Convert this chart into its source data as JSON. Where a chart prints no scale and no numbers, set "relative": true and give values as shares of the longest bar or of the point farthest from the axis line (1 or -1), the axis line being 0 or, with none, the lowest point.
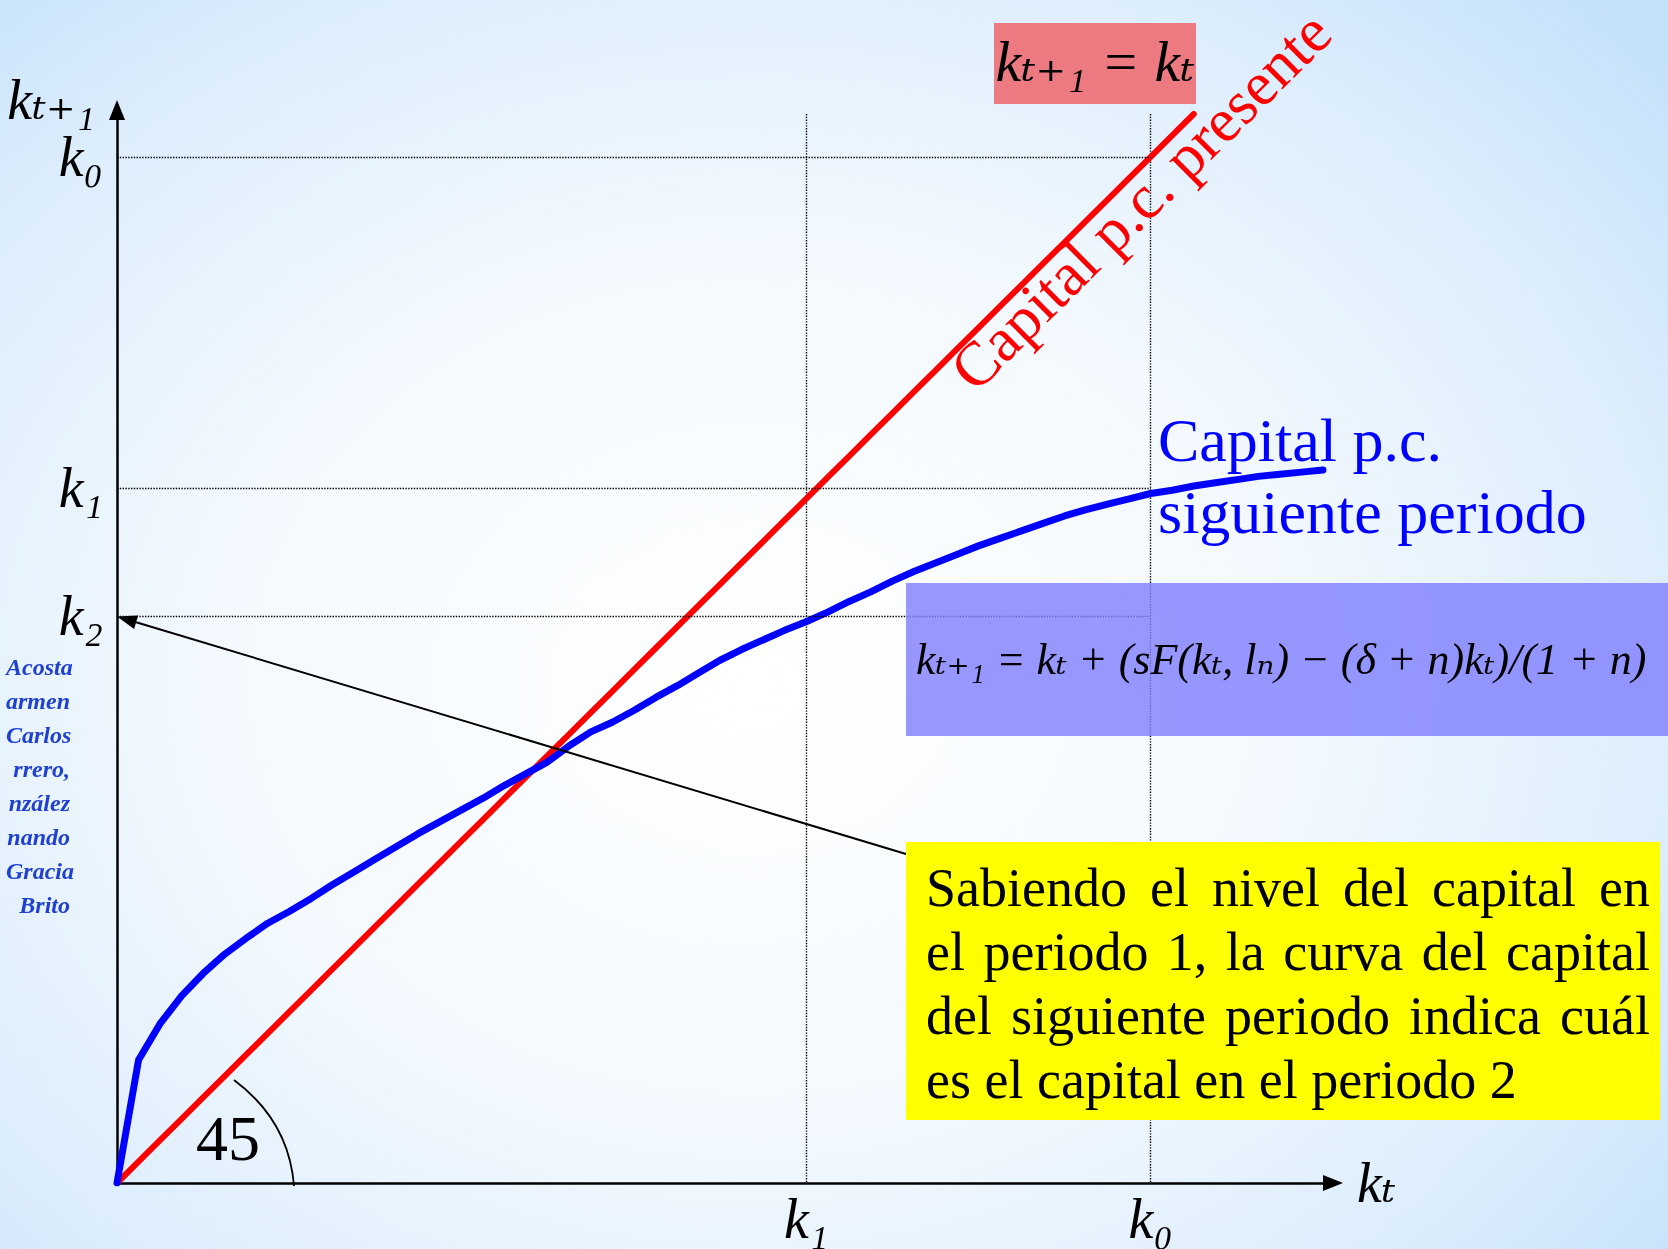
{
  "chart_data": {
    "type": "line",
    "relative": true,
    "xlabel": "kₜ",
    "ylabel": "kₜ₊₁",
    "marker": "none",
    "grid": "x",
    "categories": [
      null,
      null,
      null,
      null,
      null,
      null,
      null,
      null,
      null,
      null,
      null,
      null,
      null,
      null,
      null,
      null,
      null,
      null,
      null,
      null,
      null,
      null,
      null,
      null,
      null,
      null,
      null,
      null,
      null,
      null,
      null,
      null,
      "k₁",
      null,
      null,
      null,
      null,
      null,
      null,
      null,
      null,
      null,
      null,
      null,
      null,
      null,
      null,
      null,
      "k₀",
      null,
      null,
      null,
      null,
      null,
      null,
      null,
      null
    ],
    "series": [
      {
        "name": "Capital p.c. presente",
        "color": "#ff0000",
        "values": [
          0,
          0.02,
          0.04,
          0.06,
          0.08,
          0.1,
          0.12,
          0.14,
          0.16,
          0.18,
          0.2,
          0.22,
          0.24,
          0.26,
          0.28,
          0.3,
          0.32,
          0.34,
          0.36,
          0.38,
          0.4,
          0.42,
          0.44,
          0.46,
          0.48,
          0.5,
          0.52,
          0.54,
          0.56,
          0.58,
          0.6,
          0.62,
          0.64,
          0.66,
          0.68,
          0.7,
          0.72,
          0.74,
          0.76,
          0.78,
          0.8,
          0.82,
          0.84,
          0.86,
          0.88,
          0.9,
          0.92,
          0.94,
          0.96,
          0.98,
          1,
          null,
          null,
          null,
          null,
          null,
          null
        ]
      },
      {
        "name": "Capital p.c. siguiente periodo",
        "color": "#0000ff",
        "values": [
          0,
          0.115,
          0.149,
          0.175,
          0.196,
          0.214,
          0.229,
          0.243,
          0.254,
          0.266,
          0.279,
          0.291,
          0.303,
          0.315,
          0.327,
          0.338,
          0.349,
          0.36,
          0.372,
          0.383,
          0.394,
          0.409,
          0.422,
          0.431,
          0.442,
          0.454,
          0.465,
          0.477,
          0.489,
          0.499,
          0.508,
          0.517,
          0.525,
          0.534,
          0.544,
          0.553,
          0.563,
          0.572,
          0.58,
          0.588,
          0.596,
          0.603,
          0.61,
          0.617,
          0.624,
          0.63,
          0.635,
          0.64,
          0.645,
          0.648,
          0.652,
          0.655,
          0.658,
          0.661,
          0.663,
          0.665,
          0.667
        ]
      }
    ],
    "ref_lines": [
      {
        "axis": "y",
        "value": 0.96,
        "label": "k₀",
        "color": "#000000",
        "line_style": "dotted"
      },
      {
        "axis": "y",
        "value": 0.65,
        "label": "k₁",
        "color": "#000000",
        "line_style": "dotted"
      },
      {
        "axis": "y",
        "value": 0.53,
        "label": "k₂",
        "color": "#000000",
        "line_style": "dotted"
      }
    ],
    "annotations": [
      "kₜ₊₁ = kₜ",
      "kₜ₊₁ = kₜ + (sF(kₜ, lₙ) − (δ + n)kₜ)/(1 + n)",
      "Sabiendo el nivel del capital en el periodo 1, la curva del capital del siguiente periodo indica cuál es el capital en el periodo 2",
      "45",
      "Acosta\narmen\nCarlos\nrrero,\nnzález\nnando\nGracia\nBrito"
    ]
  }
}
